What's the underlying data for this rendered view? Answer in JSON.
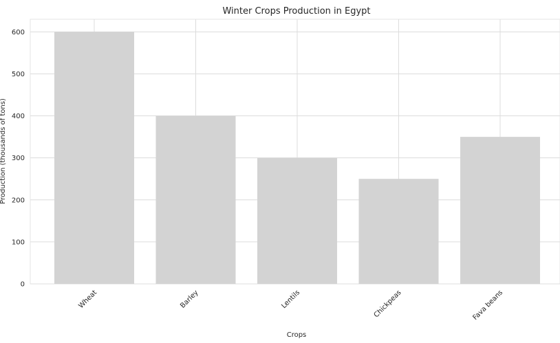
{
  "chart_data": {
    "type": "bar",
    "title": "Winter Crops Production in Egypt",
    "xlabel": "Crops",
    "ylabel": "Production (thousands of tons)",
    "categories": [
      "Wheat",
      "Barley",
      "Lentils",
      "Chickpeas",
      "Fava beans"
    ],
    "values": [
      600,
      400,
      300,
      250,
      350
    ],
    "ylim": [
      0,
      630
    ],
    "yticks": [
      0,
      100,
      200,
      300,
      400,
      500,
      600
    ],
    "grid": true,
    "bar_color": "#d3d3d3",
    "grid_color": "#dcdcdc"
  }
}
